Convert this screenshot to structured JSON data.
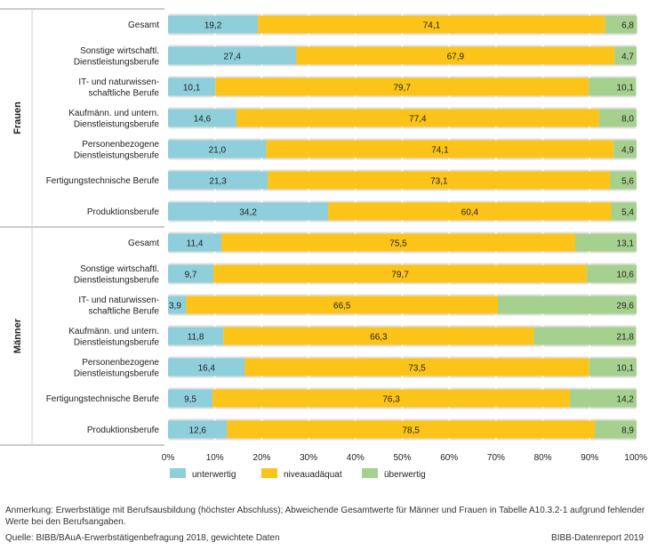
{
  "chart_data": {
    "type": "bar",
    "orientation": "horizontal",
    "stacked": true,
    "groups": [
      {
        "label": "Frauen",
        "categories": [
          [
            "Gesamt"
          ],
          [
            "Sonstige wirtschaftl.",
            "Dienstleistungsberufe"
          ],
          [
            "IT- und naturwissen-",
            "schaftliche Berufe"
          ],
          [
            "Kaufmänn. und untern.",
            "Dienstleistungsberufe"
          ],
          [
            "Personenbezogene",
            "Dienstleistungsberufe"
          ],
          [
            "Fertigungstechnische Berufe"
          ],
          [
            "Produktionsberufe"
          ]
        ],
        "values": [
          [
            19.2,
            74.1,
            6.8
          ],
          [
            27.4,
            67.9,
            4.7
          ],
          [
            10.1,
            79.7,
            10.1
          ],
          [
            14.6,
            77.4,
            8.0
          ],
          [
            21.0,
            74.1,
            4.9
          ],
          [
            21.3,
            73.1,
            5.6
          ],
          [
            34.2,
            60.4,
            5.4
          ]
        ],
        "labels": [
          [
            "19,2",
            "74,1",
            "6,8"
          ],
          [
            "27,4",
            "67,9",
            "4,7"
          ],
          [
            "10,1",
            "79,7",
            "10,1"
          ],
          [
            "14,6",
            "77,4",
            "8,0"
          ],
          [
            "21,0",
            "74,1",
            "4,9"
          ],
          [
            "21,3",
            "73,1",
            "5,6"
          ],
          [
            "34,2",
            "60,4",
            "5,4"
          ]
        ]
      },
      {
        "label": "Männer",
        "categories": [
          [
            "Gesamt"
          ],
          [
            "Sonstige wirtschaftl.",
            "Dienstleistungsberufe"
          ],
          [
            "IT- und naturwissen-",
            "schaftliche Berufe"
          ],
          [
            "Kaufmänn. und untern.",
            "Dienstleistungsberufe"
          ],
          [
            "Personenbezogene",
            "Dienstleistungsberufe"
          ],
          [
            "Fertigungstechnische Berufe"
          ],
          [
            "Produktionsberufe"
          ]
        ],
        "values": [
          [
            11.4,
            75.5,
            13.1
          ],
          [
            9.7,
            79.7,
            10.6
          ],
          [
            3.9,
            66.5,
            29.6
          ],
          [
            11.8,
            66.3,
            21.8
          ],
          [
            16.4,
            73.5,
            10.1
          ],
          [
            9.5,
            76.3,
            14.2
          ],
          [
            12.6,
            78.5,
            8.9
          ]
        ],
        "labels": [
          [
            "11,4",
            "75,5",
            "13,1"
          ],
          [
            "9,7",
            "79,7",
            "10,6"
          ],
          [
            "3,9",
            "66,5",
            "29,6"
          ],
          [
            "11,8",
            "66,3",
            "21,8"
          ],
          [
            "16,4",
            "73,5",
            "10,1"
          ],
          [
            "9,5",
            "76,3",
            "14,2"
          ],
          [
            "12,6",
            "78,5",
            "8,9"
          ]
        ]
      }
    ],
    "series": [
      {
        "name": "unterwertig",
        "color": "#8ecfdb"
      },
      {
        "name": "niveauadäquat",
        "color": "#fcc419"
      },
      {
        "name": "überwertig",
        "color": "#a6d08e"
      }
    ],
    "xlim": [
      0,
      100
    ],
    "xticks": [
      "0%",
      "10%",
      "20%",
      "30%",
      "40%",
      "50%",
      "60%",
      "70%",
      "80%",
      "90%",
      "100%"
    ],
    "legend_position": "bottom",
    "grid": true
  },
  "footer": {
    "note": "Anmerkung: Erwerbstätige mit Berufsausbildung (höchster Abschluss); Abweichende Gesamtwerte für Männer und Frauen in Tabelle A10.3.2-1 aufgrund fehlender Werte bei den Berufsangaben.",
    "source": "Quelle: BIBB/BAuA-Erwerbstätigenbefragung 2018, gewichtete Daten",
    "report": "BIBB-Datenreport 2019"
  }
}
